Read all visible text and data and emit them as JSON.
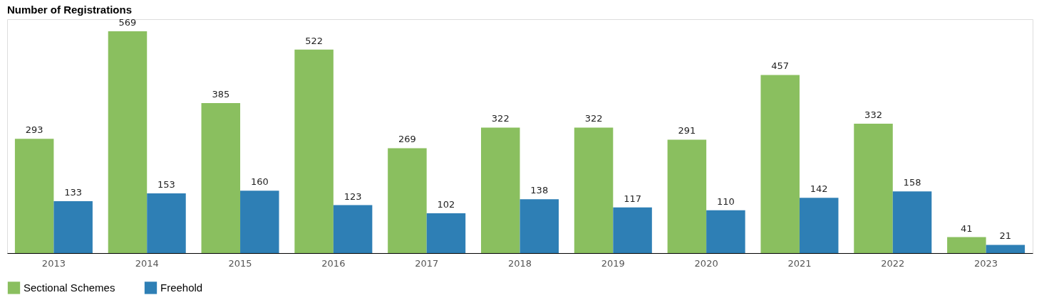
{
  "chart_data": {
    "type": "bar",
    "title": "Number of Registrations",
    "categories": [
      "2013",
      "2014",
      "2015",
      "2016",
      "2017",
      "2018",
      "2019",
      "2020",
      "2021",
      "2022",
      "2023"
    ],
    "series": [
      {
        "name": "Sectional Schemes",
        "color": "#8abf5f",
        "values": [
          293,
          569,
          385,
          522,
          269,
          322,
          322,
          291,
          457,
          332,
          41
        ]
      },
      {
        "name": "Freehold",
        "color": "#2e7fb5",
        "values": [
          133,
          153,
          160,
          123,
          102,
          138,
          117,
          110,
          142,
          158,
          21
        ]
      }
    ],
    "data_labels": true,
    "tick_labels": "x",
    "legend": "bottom",
    "grid": false
  }
}
